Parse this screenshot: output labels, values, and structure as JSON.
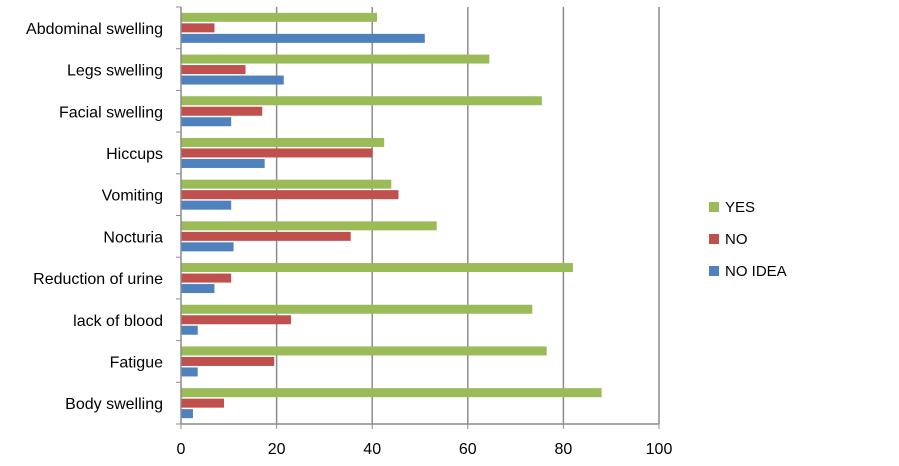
{
  "chart_data": {
    "type": "bar",
    "orientation": "horizontal",
    "categories": [
      "Body swelling",
      "Fatigue",
      "lack of blood",
      "Reduction of urine",
      "Nocturia",
      "Vomiting",
      "Hiccups",
      "Facial swelling",
      "Legs swelling",
      "Abdominal swelling"
    ],
    "series": [
      {
        "name": "YES",
        "color": "#9bbb59",
        "values": [
          88,
          76.5,
          73.5,
          82,
          53.5,
          44,
          42.5,
          75.5,
          64.5,
          41
        ]
      },
      {
        "name": "NO",
        "color": "#c0504d",
        "values": [
          9,
          19.5,
          23,
          10.5,
          35.5,
          45.5,
          40,
          17,
          13.5,
          7
        ]
      },
      {
        "name": "NO IDEA",
        "color": "#4f81bd",
        "values": [
          2.5,
          3.5,
          3.5,
          7,
          11,
          10.5,
          17.5,
          10.5,
          21.5,
          51
        ]
      }
    ],
    "xlim": [
      0,
      100
    ],
    "xticks": [
      0,
      20,
      40,
      60,
      80,
      100
    ],
    "grid": true,
    "legend_position": "right"
  }
}
